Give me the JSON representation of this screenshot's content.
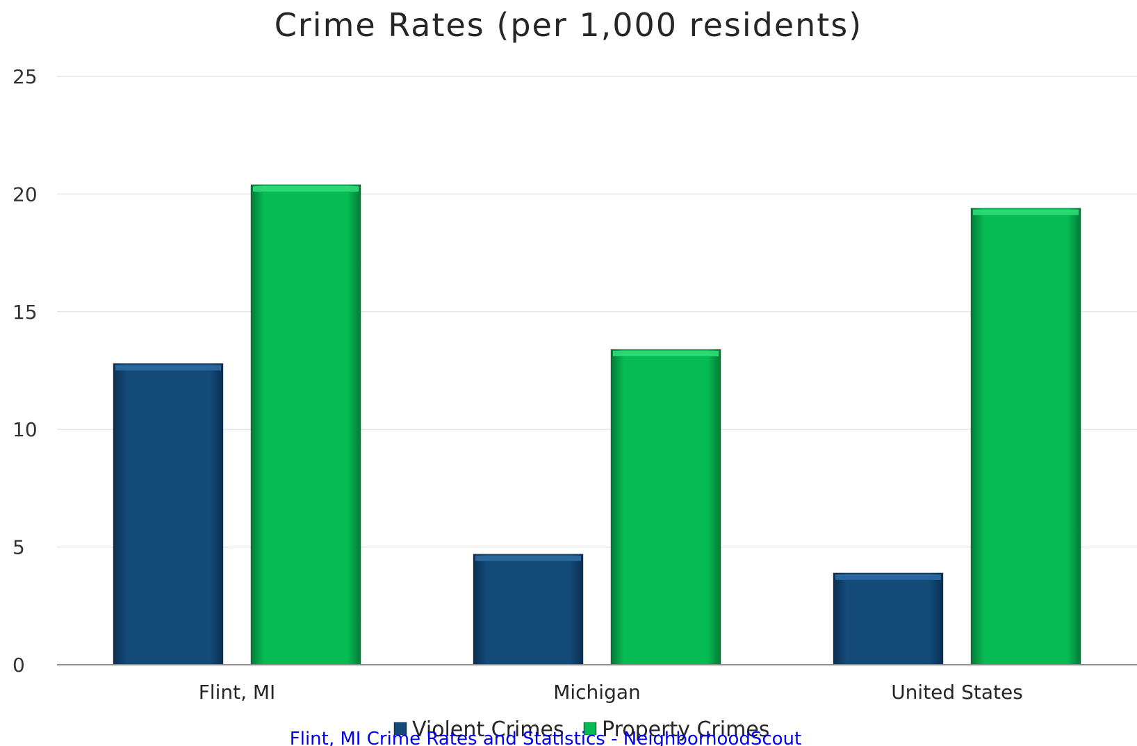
{
  "chart_data": {
    "type": "bar",
    "title": "Crime Rates (per 1,000 residents)",
    "categories": [
      "Flint, MI",
      "Michigan",
      "United States"
    ],
    "series": [
      {
        "name": "Violent Crimes",
        "values": [
          12.8,
          4.7,
          3.9
        ],
        "color": "#134a78"
      },
      {
        "name": "Property Crimes",
        "values": [
          20.4,
          13.4,
          19.4
        ],
        "color": "#07bb54"
      }
    ],
    "ylim": [
      0,
      25
    ],
    "yticks": [
      "0",
      "5",
      "10",
      "15",
      "20",
      "25"
    ],
    "grid": true,
    "legend": "bottom",
    "xlabel": "",
    "ylabel": ""
  },
  "source_link": "Flint, MI Crime Rates and Statistics - NeighborhoodScout"
}
